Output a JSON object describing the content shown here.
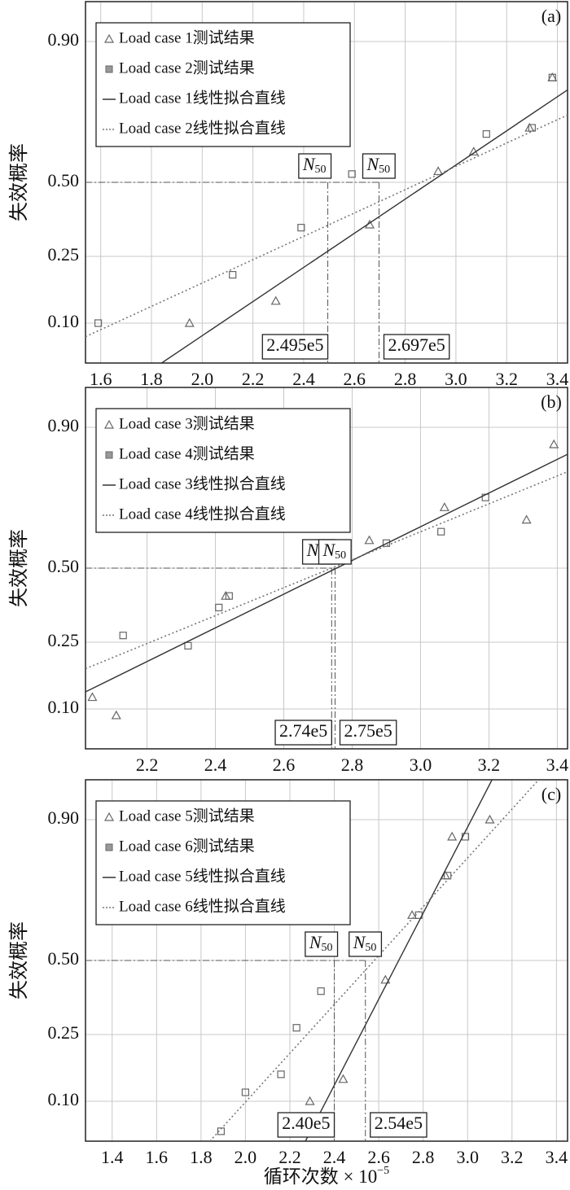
{
  "chart_data": [
    {
      "type": "scatter",
      "panel_label": "(a)",
      "ylabel": "失效概率",
      "yscale": "probability",
      "xlim": [
        1.54,
        3.44
      ],
      "ylim": [
        0.05,
        0.95
      ],
      "xticks": [
        1.6,
        1.8,
        {
          "value": 2,
          "label": "2.0"
        },
        2.2,
        2.4,
        2.6,
        2.8,
        {
          "value": 3,
          "label": "3.0"
        },
        3.2,
        3.4
      ],
      "yticks": [
        {
          "value": 0.1,
          "label": "0.10"
        },
        0.25,
        {
          "value": 0.5,
          "label": "0.50"
        },
        {
          "value": 0.9,
          "label": "0.90"
        }
      ],
      "grid": true,
      "legend": "upper left",
      "reference_level": 0.5,
      "n50_symbol": "N",
      "n50_subscript": "50",
      "n50_markers": [
        {
          "value": 2.495,
          "label": "2.495e5"
        },
        {
          "value": 2.697,
          "label": "2.697e5"
        }
      ],
      "series": [
        {
          "name": "Load case 1测试结果",
          "kind": "markers",
          "marker": "triangle",
          "color": "#666666",
          "x": [
            1.95,
            2.29,
            2.66,
            2.93,
            3.07,
            3.29,
            3.38
          ],
          "values": [
            0.1,
            0.14,
            0.35,
            0.54,
            0.61,
            0.69,
            0.83
          ]
        },
        {
          "name": "Load case 2测试结果",
          "kind": "markers",
          "marker": "square",
          "color": "#666666",
          "x": [
            1.59,
            2.12,
            2.39,
            2.59,
            3.12,
            3.3,
            3.38
          ],
          "values": [
            0.1,
            0.2,
            0.34,
            0.53,
            0.67,
            0.69,
            0.83
          ]
        },
        {
          "name": "Load case 1线性拟合直线",
          "kind": "line",
          "dash": "solid",
          "color": "#333333",
          "x": [
            1.84,
            3.44
          ],
          "values": [
            0.05,
            0.8
          ]
        },
        {
          "name": "Load case 2线性拟合直线",
          "kind": "line",
          "dash": "dotted",
          "color": "#777777",
          "x": [
            1.54,
            3.44
          ],
          "values": [
            0.08,
            0.73
          ]
        }
      ]
    },
    {
      "type": "scatter",
      "panel_label": "(b)",
      "ylabel": "失效概率",
      "yscale": "probability",
      "xlim": [
        2.02,
        3.43
      ],
      "ylim": [
        0.05,
        0.95
      ],
      "xticks": [
        2.2,
        2.4,
        2.6,
        2.8,
        {
          "value": 3,
          "label": "3.0"
        },
        3.2,
        3.4
      ],
      "yticks": [
        {
          "value": 0.1,
          "label": "0.10"
        },
        0.25,
        {
          "value": 0.5,
          "label": "0.50"
        },
        {
          "value": 0.9,
          "label": "0.90"
        }
      ],
      "grid": true,
      "legend": "upper left",
      "reference_level": 0.5,
      "n50_symbol": "N",
      "n50_subscript": "50",
      "n50_markers": [
        {
          "value": 2.74,
          "label": "2.74e5"
        },
        {
          "value": 2.75,
          "label": "2.75e5"
        }
      ],
      "series": [
        {
          "name": "Load case 3测试结果",
          "kind": "markers",
          "marker": "triangle",
          "color": "#666666",
          "x": [
            2.04,
            2.11,
            2.43,
            2.85,
            3.07,
            3.31,
            3.39
          ],
          "values": [
            0.12,
            0.09,
            0.4,
            0.6,
            0.71,
            0.67,
            0.87
          ]
        },
        {
          "name": "Load case 4测试结果",
          "kind": "markers",
          "marker": "square",
          "color": "#666666",
          "x": [
            2.13,
            2.32,
            2.41,
            2.44,
            2.9,
            3.06,
            3.19
          ],
          "values": [
            0.27,
            0.24,
            0.36,
            0.4,
            0.59,
            0.63,
            0.74
          ]
        },
        {
          "name": "Load case 3线性拟合直线",
          "kind": "line",
          "dash": "solid",
          "color": "#333333",
          "x": [
            2.02,
            3.43
          ],
          "values": [
            0.13,
            0.85
          ]
        },
        {
          "name": "Load case 4线性拟合直线",
          "kind": "line",
          "dash": "dotted",
          "color": "#777777",
          "x": [
            2.02,
            3.43
          ],
          "values": [
            0.18,
            0.81
          ]
        }
      ]
    },
    {
      "type": "scatter",
      "panel_label": "(c)",
      "ylabel": "失效概率",
      "yscale": "probability",
      "xlabel": "循环次数 × 10",
      "xlabel_exponent": "−5",
      "xlim": [
        1.28,
        3.45
      ],
      "ylim": [
        0.05,
        0.95
      ],
      "xticks": [
        1.4,
        1.6,
        1.8,
        {
          "value": 2,
          "label": "2.0"
        },
        2.2,
        2.4,
        2.6,
        2.8,
        {
          "value": 3,
          "label": "3.0"
        },
        3.2,
        3.4
      ],
      "yticks": [
        {
          "value": 0.1,
          "label": "0.10"
        },
        0.25,
        {
          "value": 0.5,
          "label": "0.50"
        },
        {
          "value": 0.9,
          "label": "0.90"
        }
      ],
      "grid": true,
      "legend": "upper left",
      "reference_level": 0.5,
      "n50_symbol": "N",
      "n50_subscript": "50",
      "n50_markers": [
        {
          "value": 2.4,
          "label": "2.40e5"
        },
        {
          "value": 2.54,
          "label": "2.54e5"
        }
      ],
      "series": [
        {
          "name": "Load case 5测试结果",
          "kind": "markers",
          "marker": "triangle",
          "color": "#666666",
          "x": [
            2.29,
            2.44,
            2.63,
            2.75,
            2.9,
            2.93,
            3.1
          ],
          "values": [
            0.1,
            0.14,
            0.43,
            0.66,
            0.78,
            0.87,
            0.9
          ]
        },
        {
          "name": "Load case 6测试结果",
          "kind": "markers",
          "marker": "square",
          "color": "#666666",
          "x": [
            1.89,
            2.0,
            2.16,
            2.23,
            2.34,
            2.78,
            2.91,
            2.99
          ],
          "values": [
            0.06,
            0.115,
            0.15,
            0.27,
            0.39,
            0.66,
            0.78,
            0.87
          ]
        },
        {
          "name": "Load case 5线性拟合直线",
          "kind": "line",
          "dash": "solid",
          "color": "#333333",
          "x": [
            2.27,
            3.11
          ],
          "values": [
            0.05,
            0.95
          ]
        },
        {
          "name": "Load case 6线性拟合直线",
          "kind": "line",
          "dash": "dotted",
          "color": "#777777",
          "x": [
            1.84,
            3.32
          ],
          "values": [
            0.05,
            0.95
          ]
        }
      ]
    }
  ]
}
